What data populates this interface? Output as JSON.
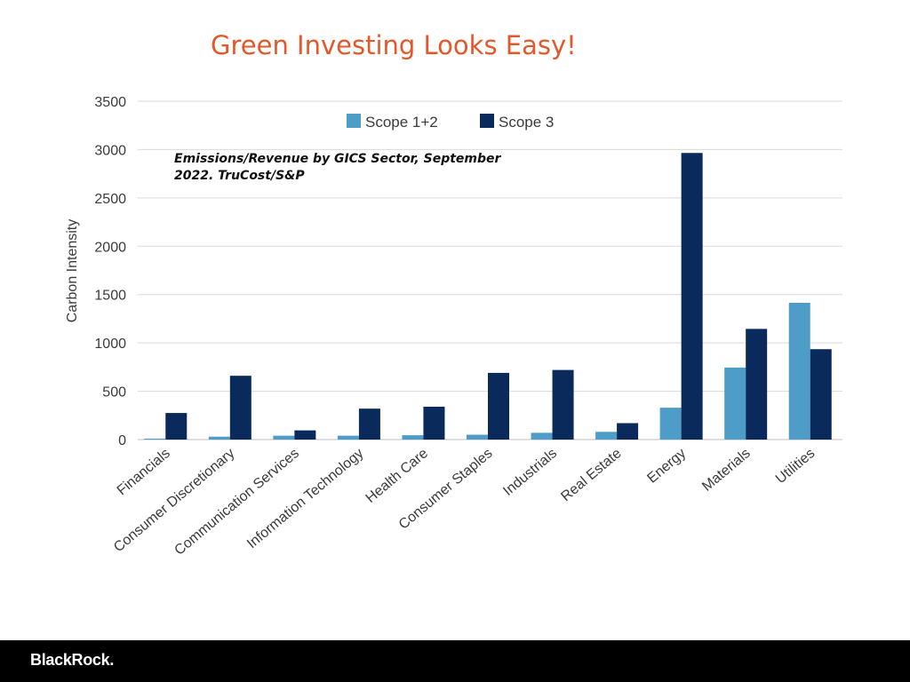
{
  "slide": {
    "title": "Green Investing Looks Easy!",
    "subtitle": "Emissions/Revenue by GICS Sector, September 2022.  TruCost/S&P",
    "footer_logo": "BlackRock."
  },
  "chart_data": {
    "type": "bar",
    "ylabel": "Carbon Intensity",
    "xlabel": "",
    "ylim": [
      0,
      3500
    ],
    "yticks": [
      0,
      500,
      1000,
      1500,
      2000,
      2500,
      3000,
      3500
    ],
    "grid": true,
    "legend_position": "top",
    "categories": [
      "Financials",
      "Consumer Discretionary",
      "Communication Services",
      "Information Technology",
      "Health Care",
      "Consumer Staples",
      "Industrials",
      "Real Estate",
      "Energy",
      "Materials",
      "Utilities"
    ],
    "series": [
      {
        "name": "Scope 1+2",
        "color": "#4e9cc8",
        "values": [
          10,
          30,
          40,
          40,
          45,
          50,
          70,
          80,
          330,
          745,
          1415
        ]
      },
      {
        "name": "Scope 3",
        "color": "#0a2a5c",
        "values": [
          275,
          660,
          95,
          320,
          340,
          690,
          720,
          170,
          2965,
          1145,
          935
        ]
      }
    ]
  }
}
